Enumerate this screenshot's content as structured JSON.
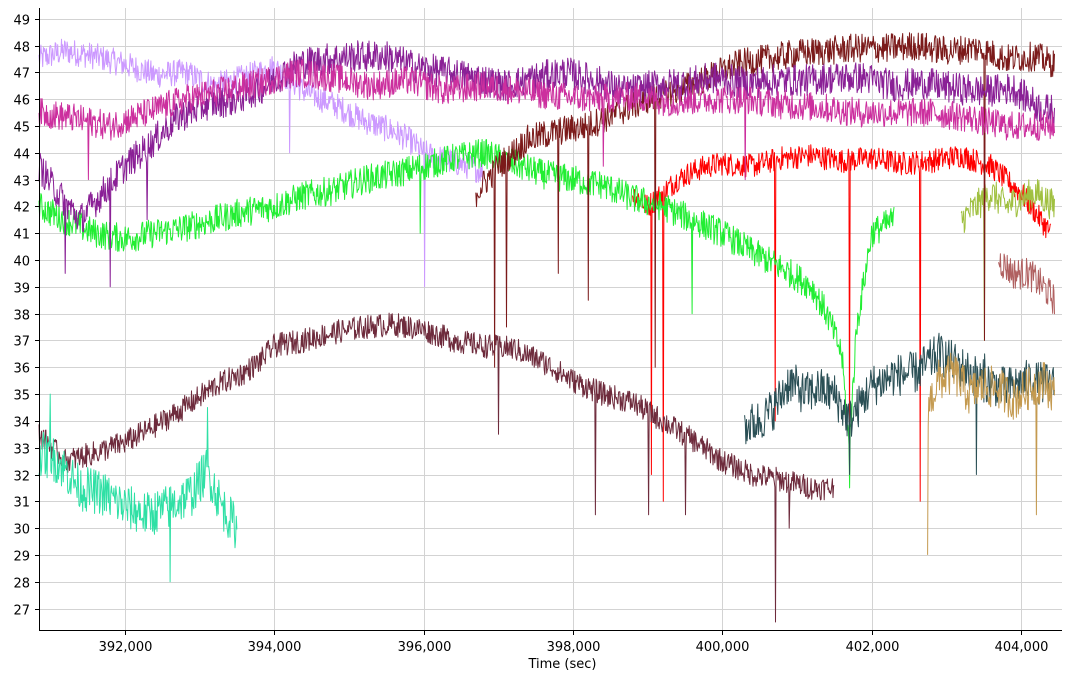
{
  "chart_data": {
    "type": "line",
    "title": "",
    "xlabel": "Time (sec)",
    "ylabel": "",
    "xlim": [
      390850,
      404550
    ],
    "ylim": [
      26.2,
      49.4
    ],
    "grid": true,
    "legend": "none",
    "x_ticks": [
      392000,
      394000,
      396000,
      398000,
      400000,
      402000,
      404000
    ],
    "x_tick_labels": [
      "392,000",
      "394,000",
      "396,000",
      "398,000",
      "400,000",
      "402,000",
      "404,000"
    ],
    "y_ticks": [
      27,
      28,
      29,
      30,
      31,
      32,
      33,
      34,
      35,
      36,
      37,
      38,
      39,
      40,
      41,
      42,
      43,
      44,
      45,
      46,
      47,
      48,
      49
    ],
    "y_tick_labels": [
      "27",
      "28",
      "29",
      "30",
      "31",
      "32",
      "33",
      "34",
      "35",
      "36",
      "37",
      "38",
      "39",
      "40",
      "41",
      "42",
      "43",
      "44",
      "45",
      "46",
      "47",
      "48",
      "49"
    ],
    "series": [
      {
        "color": "#cc99ff",
        "noise": 0.5,
        "x": [
          390850,
          391200,
          391600,
          392000,
          392400,
          392800,
          393200,
          393600,
          394000,
          394400,
          394800,
          395200,
          395400,
          395600,
          395800,
          396000,
          396200,
          396600,
          396800
        ],
        "y": [
          47.5,
          47.8,
          47.6,
          47.3,
          46.9,
          47.0,
          46.5,
          46.8,
          47.2,
          46.3,
          45.8,
          45.2,
          45.0,
          44.8,
          44.5,
          44.0,
          43.8,
          43.5,
          43.3
        ],
        "drops": [
          [
            396000,
            39.0
          ],
          [
            394200,
            44.0
          ]
        ]
      },
      {
        "color": "#ff0000",
        "noise": 0.45,
        "x": [
          398800,
          399000,
          399200,
          399400,
          399600,
          399800,
          400000,
          400400,
          400800,
          401200,
          401600,
          402000,
          402400,
          402800,
          403200,
          403600,
          404000,
          404400
        ],
        "y": [
          42.5,
          42.0,
          42.5,
          43.0,
          43.3,
          43.5,
          43.6,
          43.5,
          43.8,
          43.9,
          43.7,
          43.8,
          43.6,
          43.7,
          43.9,
          43.5,
          42.5,
          41.0
        ],
        "drops": [
          [
            399050,
            32.0
          ],
          [
            399200,
            31.0
          ],
          [
            400700,
            34.0
          ],
          [
            401700,
            33.0
          ],
          [
            402650,
            31.0
          ]
        ]
      },
      {
        "color": "#a0c040",
        "noise": 0.6,
        "x": [
          403200,
          403400,
          403600,
          403800,
          404000,
          404200,
          404450
        ],
        "y": [
          41.5,
          42.0,
          42.5,
          42.0,
          42.3,
          42.5,
          42.0
        ],
        "drops": [
          [
            403500,
            37.0
          ]
        ]
      },
      {
        "color": "#b06060",
        "noise": 0.6,
        "x": [
          403700,
          403900,
          404100,
          404300,
          404450
        ],
        "y": [
          40.0,
          39.5,
          39.5,
          39.0,
          38.5
        ],
        "drops": []
      },
      {
        "color": "#22ee33",
        "noise": 0.55,
        "x": [
          390850,
          391200,
          391600,
          392000,
          392400,
          392800,
          393200,
          393600,
          394000,
          394400,
          394800,
          395200,
          395600,
          396000,
          396400,
          396800,
          397200,
          397600,
          398000,
          398400,
          398800,
          399200,
          399600,
          400000,
          400400,
          400800,
          401200,
          401400,
          401600,
          401700,
          401800,
          402000,
          402300
        ],
        "y": [
          42.0,
          41.5,
          41.0,
          40.8,
          41.0,
          41.2,
          41.5,
          41.8,
          42.0,
          42.4,
          42.6,
          43.0,
          43.2,
          43.5,
          43.8,
          44.0,
          43.6,
          43.2,
          43.0,
          42.8,
          42.3,
          42.0,
          41.5,
          41.0,
          40.3,
          39.7,
          39.0,
          38.0,
          36.5,
          33.0,
          37.5,
          41.0,
          41.5
        ],
        "drops": [
          [
            395950,
            41.0
          ],
          [
            399600,
            38.0
          ],
          [
            401700,
            31.5
          ]
        ]
      },
      {
        "color": "#7b1a1a",
        "noise": 0.55,
        "x": [
          396700,
          397000,
          397400,
          397800,
          398200,
          398600,
          399000,
          399400,
          399800,
          400200,
          400600,
          401000,
          401400,
          401800,
          402200,
          402600,
          403000,
          403400,
          403800,
          404200,
          404450
        ],
        "y": [
          42.5,
          43.5,
          44.5,
          44.8,
          45.0,
          45.5,
          46.0,
          46.3,
          46.8,
          47.3,
          47.5,
          47.7,
          47.8,
          47.9,
          47.9,
          48.0,
          47.8,
          47.9,
          47.5,
          47.6,
          47.3
        ],
        "drops": [
          [
            396950,
            36.0
          ],
          [
            397100,
            37.5
          ],
          [
            397800,
            39.5
          ],
          [
            398200,
            38.5
          ],
          [
            399100,
            36.0
          ],
          [
            403500,
            37.0
          ]
        ]
      },
      {
        "color": "#8a2096",
        "noise": 0.6,
        "x": [
          390850,
          391100,
          391400,
          391700,
          392000,
          392300,
          392700,
          393100,
          393500,
          393900,
          394300,
          394700,
          395100,
          395500,
          395900,
          396300,
          396700,
          397100,
          397500,
          397900,
          398300,
          398700,
          399100,
          399500,
          399900,
          400300,
          400700,
          401100,
          401500,
          401900,
          402300,
          402700,
          403100,
          403500,
          403900,
          404300,
          404450
        ],
        "y": [
          43.5,
          42.5,
          41.5,
          42.5,
          43.5,
          44.2,
          45.3,
          45.8,
          46.0,
          46.5,
          47.3,
          47.5,
          47.6,
          47.6,
          47.2,
          47.0,
          46.8,
          46.5,
          46.8,
          47.0,
          46.7,
          46.3,
          46.5,
          46.6,
          46.8,
          46.6,
          46.7,
          46.7,
          46.8,
          46.8,
          46.5,
          46.6,
          46.4,
          46.3,
          46.4,
          45.6,
          45.6
        ],
        "drops": [
          [
            391200,
            39.5
          ],
          [
            391800,
            39.0
          ],
          [
            392300,
            41.5
          ]
        ]
      },
      {
        "color": "#cc2f9e",
        "noise": 0.55,
        "x": [
          390850,
          391300,
          391800,
          392300,
          392800,
          393300,
          393800,
          394300,
          394800,
          395300,
          395800,
          396300,
          396800,
          397300,
          397800,
          398300,
          398800,
          399300,
          399800,
          400300,
          400800,
          401300,
          401800,
          402300,
          402800,
          403300,
          403800,
          404300,
          404450
        ],
        "y": [
          45.5,
          45.3,
          45.0,
          45.5,
          46.0,
          46.3,
          46.6,
          47.0,
          46.8,
          46.5,
          46.7,
          46.3,
          46.5,
          46.3,
          46.1,
          46.0,
          46.1,
          45.9,
          46.0,
          46.0,
          45.8,
          45.7,
          45.5,
          45.5,
          45.5,
          45.3,
          45.0,
          45.0,
          45.0
        ],
        "drops": [
          [
            391500,
            43.0
          ],
          [
            398400,
            43.5
          ],
          [
            400300,
            43.0
          ]
        ]
      },
      {
        "color": "#2a4f55",
        "noise": 0.8,
        "x": [
          400300,
          400500,
          400700,
          400900,
          401100,
          401300,
          401500,
          401700,
          402000,
          402300,
          402600,
          402900,
          403200,
          403500,
          403800,
          404100,
          404450
        ],
        "y": [
          33.8,
          34.0,
          34.5,
          35.5,
          35.0,
          35.2,
          35.0,
          34.0,
          35.3,
          35.7,
          35.8,
          36.5,
          36.0,
          35.5,
          35.2,
          35.5,
          35.3
        ],
        "drops": [
          [
            401700,
            32.0
          ],
          [
            403400,
            32.0
          ],
          [
            403500,
            36.5
          ]
        ]
      },
      {
        "color": "#c49a50",
        "noise": 0.8,
        "x": [
          402750,
          402900,
          403100,
          403300,
          403500,
          403700,
          403900,
          404100,
          404300,
          404450
        ],
        "y": [
          34.5,
          35.5,
          35.8,
          35.0,
          35.3,
          35.2,
          34.8,
          35.2,
          35.5,
          35.0
        ],
        "drops": [
          [
            402650,
            29.5
          ],
          [
            402700,
            29.0
          ],
          [
            404200,
            30.5
          ]
        ]
      },
      {
        "color": "#6e2b3c",
        "noise": 0.45,
        "x": [
          390850,
          391200,
          391600,
          392000,
          392400,
          392800,
          393200,
          393600,
          393800,
          394000,
          394400,
          394800,
          395200,
          395600,
          396000,
          396400,
          396800,
          397200,
          397600,
          398000,
          398400,
          398800,
          399200,
          399600,
          400000,
          400400,
          400800,
          401200,
          401500
        ],
        "y": [
          33.5,
          32.5,
          32.8,
          33.2,
          33.8,
          34.5,
          35.3,
          35.8,
          36.2,
          36.8,
          37.0,
          37.3,
          37.5,
          37.6,
          37.4,
          37.0,
          36.8,
          36.7,
          36.2,
          35.5,
          35.0,
          34.7,
          34.0,
          33.3,
          32.5,
          32.0,
          31.8,
          31.5,
          31.5
        ],
        "drops": [
          [
            397000,
            33.5
          ],
          [
            399000,
            30.5
          ],
          [
            400700,
            26.5
          ],
          [
            399500,
            30.5
          ],
          [
            398300,
            30.5
          ],
          [
            400900,
            30.0
          ]
        ]
      },
      {
        "color": "#2fe0a5",
        "noise": 0.85,
        "x": [
          390850,
          391100,
          391400,
          391700,
          392000,
          392300,
          392600,
          392900,
          393100,
          393300,
          393500
        ],
        "y": [
          32.8,
          32.5,
          31.5,
          31.3,
          30.8,
          30.5,
          30.8,
          31.3,
          32.2,
          30.8,
          30.0
        ],
        "drops": [
          [
            391000,
            35.0
          ],
          [
            393100,
            34.5
          ],
          [
            392600,
            28.0
          ]
        ]
      }
    ]
  }
}
